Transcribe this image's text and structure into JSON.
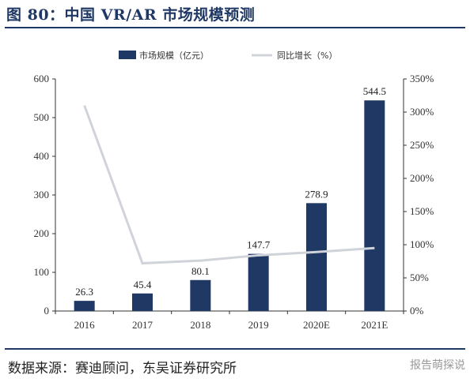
{
  "header": {
    "title": "图 80：中国 VR/AR 市场规模预测"
  },
  "footer": {
    "source": "数据来源：赛迪顾问，东吴证券研究所",
    "watermark": "报告萌探说"
  },
  "colors": {
    "bar": "#1f3864",
    "line": "#d0d4da",
    "axis": "#333333",
    "rule": "#1f3864"
  },
  "chart_data": {
    "type": "bar",
    "title": "",
    "xlabel": "",
    "ylabel": "",
    "categories": [
      "2016",
      "2017",
      "2018",
      "2019",
      "2020E",
      "2021E"
    ],
    "series": [
      {
        "name": "市场规模（亿元）",
        "type": "bar",
        "axis": "left",
        "values": [
          26.3,
          45.4,
          80.1,
          147.7,
          278.9,
          544.5
        ]
      },
      {
        "name": "同比增长（%）",
        "type": "line",
        "axis": "right",
        "values": [
          310,
          72,
          76,
          84,
          89,
          95
        ]
      }
    ],
    "data_labels": [
      "26.3",
      "45.4",
      "80.1",
      "147.7",
      "278.9",
      "544.5"
    ],
    "ylim": [
      0,
      600
    ],
    "y2lim": [
      0,
      350
    ],
    "yticks": [
      "0",
      "100",
      "200",
      "300",
      "400",
      "500",
      "600"
    ],
    "y2ticks": [
      "0%",
      "50%",
      "100%",
      "150%",
      "200%",
      "250%",
      "300%",
      "350%"
    ],
    "grid": false,
    "legend": "top-center"
  }
}
